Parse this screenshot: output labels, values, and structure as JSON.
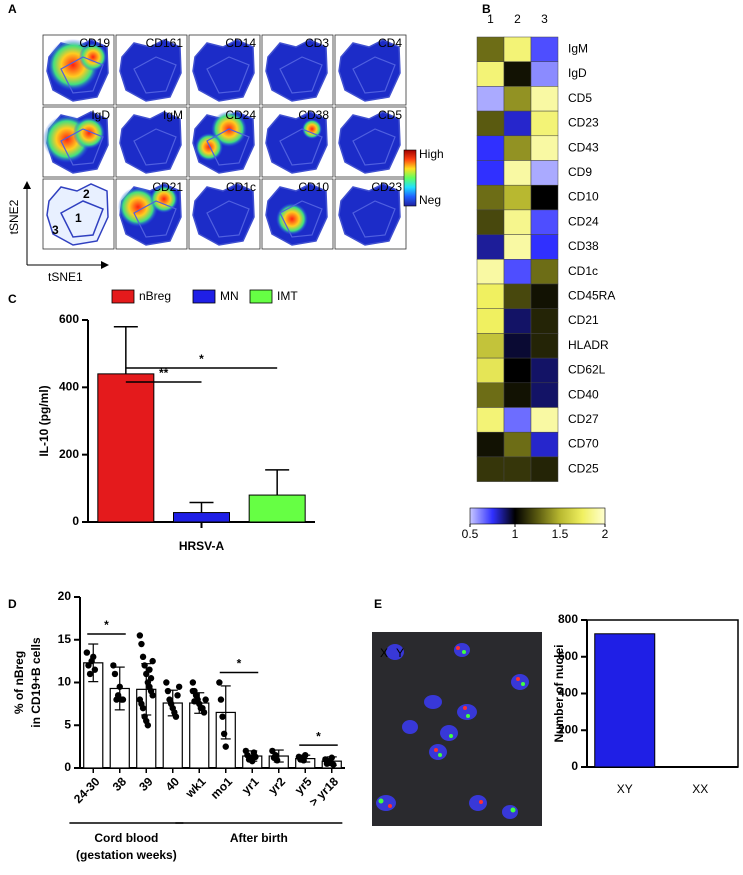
{
  "panel_labels": [
    "A",
    "B",
    "C",
    "D",
    "E"
  ],
  "tsne": {
    "markers": [
      "CD19",
      "CD161",
      "CD14",
      "CD3",
      "CD4",
      "IgD",
      "IgM",
      "CD24",
      "CD38",
      "CD5",
      "CD21",
      "CD1c",
      "CD10",
      "CD23"
    ],
    "cluster_labels": [
      "1",
      "2",
      "3"
    ],
    "x_label": "tSNE1",
    "y_label": "tSNE2",
    "scale_high": "High",
    "scale_low": "Neg"
  },
  "micrograph": {
    "labels": [
      "X",
      "Y"
    ]
  },
  "chart_data": [
    {
      "type": "heatmap",
      "columns": [
        "1",
        "2",
        "3"
      ],
      "rows": [
        "IgM",
        "IgD",
        "CD5",
        "CD23",
        "CD43",
        "CD9",
        "CD10",
        "CD24",
        "CD38",
        "CD1c",
        "CD45RA",
        "CD21",
        "HLADR",
        "CD62L",
        "CD40",
        "CD27",
        "CD70",
        "CD25"
      ],
      "values": [
        [
          1.3,
          1.8,
          0.7
        ],
        [
          1.8,
          1.05,
          0.6
        ],
        [
          0.55,
          1.4,
          1.9
        ],
        [
          1.25,
          0.8,
          1.8
        ],
        [
          0.75,
          1.4,
          1.9
        ],
        [
          0.75,
          1.9,
          0.55
        ],
        [
          1.3,
          1.5,
          1.0
        ],
        [
          1.2,
          1.85,
          0.7
        ],
        [
          0.85,
          1.9,
          0.75
        ],
        [
          1.9,
          0.7,
          1.3
        ],
        [
          1.75,
          1.2,
          1.05
        ],
        [
          1.75,
          0.9,
          1.1
        ],
        [
          1.55,
          0.95,
          1.1
        ],
        [
          1.7,
          1.0,
          0.9
        ],
        [
          1.3,
          1.05,
          0.9
        ],
        [
          1.8,
          0.65,
          1.9
        ],
        [
          1.05,
          1.3,
          0.8
        ],
        [
          1.15,
          1.15,
          1.1
        ]
      ],
      "zlim": [
        0.5,
        2
      ],
      "zticks": [
        0.5,
        1,
        1.5,
        2
      ],
      "colorscale": [
        "#c8c8ff",
        "#3030ff",
        "#000000",
        "#5a5a10",
        "#b8b830",
        "#f0f060",
        "#ffffd0"
      ]
    },
    {
      "type": "bar",
      "x_label": "HRSV-A",
      "y_label": "IL-10 (pg/ml)",
      "series": [
        {
          "name": "nBreg",
          "color": "#e41a1c"
        },
        {
          "name": "MN",
          "color": "#1f1fe6"
        },
        {
          "name": "IMT",
          "color": "#66ff44"
        }
      ],
      "values": [
        440,
        28,
        80
      ],
      "errors": [
        140,
        30,
        75
      ],
      "ylim": [
        0,
        600
      ],
      "yticks": [
        0,
        200,
        400,
        600
      ],
      "significance": [
        {
          "from": 0,
          "to": 1,
          "label": "**"
        },
        {
          "from": 0,
          "to": 2,
          "label": "*"
        }
      ]
    },
    {
      "type": "dotbar",
      "y_label": [
        "% of nBreg",
        "in CD19+B cells"
      ],
      "categories": [
        "24-30",
        "38",
        "39",
        "40",
        "wk1",
        "mo1",
        "yr1",
        "yr2",
        "yr5",
        "> yr18"
      ],
      "values": [
        12.3,
        9.3,
        9.2,
        7.6,
        7.6,
        6.5,
        1.4,
        1.4,
        1.1,
        0.8
      ],
      "errors": [
        2.2,
        2.5,
        3,
        1.5,
        1.2,
        3.1,
        0.6,
        0.7,
        0.4,
        0.5
      ],
      "points": [
        [
          13.5,
          12,
          11,
          12.5,
          13,
          11.5
        ],
        [
          12,
          11,
          8,
          8.5,
          9.5,
          8,
          8
        ],
        [
          15.5,
          14.5,
          13,
          12,
          11,
          10,
          9.5,
          9,
          8.5,
          8,
          7.5,
          7,
          6,
          5.5,
          5,
          11.5,
          10.5,
          12.5
        ],
        [
          10,
          9,
          8,
          7.5,
          7,
          6.5,
          6,
          8.5,
          9.5
        ],
        [
          10,
          9,
          8.5,
          8,
          7.5,
          7,
          7,
          6.5,
          8,
          9,
          7.8
        ],
        [
          10,
          8,
          6,
          4,
          2.5
        ],
        [
          2,
          1.5,
          1,
          1.2,
          0.8,
          1.8,
          1.3
        ],
        [
          2,
          1.2,
          1.5,
          0.9
        ],
        [
          1.3,
          1,
          1.1,
          0.9,
          1.5
        ],
        [
          1,
          0.5,
          0.8,
          0.6,
          1.2,
          0.4
        ]
      ],
      "ylim": [
        0,
        20
      ],
      "yticks": [
        0,
        5,
        10,
        15,
        20
      ],
      "significance": [
        {
          "from": 0,
          "to": 1,
          "label": "*"
        },
        {
          "from": 5,
          "to": 6,
          "label": "*"
        },
        {
          "from": 8,
          "to": 9,
          "label": "*"
        }
      ],
      "groups": [
        {
          "label": [
            "Cord blood",
            "(gestation weeks)"
          ],
          "from": 0,
          "to": 3
        },
        {
          "label": [
            "After birth"
          ],
          "from": 4,
          "to": 9
        }
      ]
    },
    {
      "type": "bar",
      "y_label": "Number of nuclei",
      "categories": [
        "XY",
        "XX"
      ],
      "values": [
        725,
        1
      ],
      "color": "#1f1fe6",
      "ylim": [
        0,
        800
      ],
      "yticks": [
        0,
        200,
        400,
        600,
        800
      ]
    }
  ]
}
